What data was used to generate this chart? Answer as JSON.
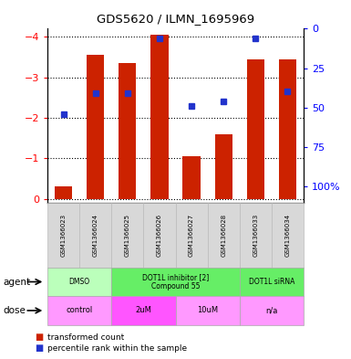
{
  "title": "GDS5620 / ILMN_1695969",
  "samples": [
    "GSM1366023",
    "GSM1366024",
    "GSM1366025",
    "GSM1366026",
    "GSM1366027",
    "GSM1366028",
    "GSM1366033",
    "GSM1366034"
  ],
  "red_values": [
    -0.3,
    -3.55,
    -3.35,
    -4.05,
    -1.05,
    -1.6,
    -3.45,
    -3.45
  ],
  "blue_values": [
    -2.1,
    -2.6,
    -2.6,
    -3.97,
    -2.3,
    -2.4,
    -3.97,
    -2.65
  ],
  "ylim_left": [
    -4.2,
    0.1
  ],
  "ylim_right": [
    0,
    110.25
  ],
  "yticks_left": [
    0,
    -1,
    -2,
    -3,
    -4
  ],
  "yticks_right": [
    0,
    25,
    50,
    75,
    100
  ],
  "ytick_labels_right": [
    "0",
    "25",
    "50",
    "75",
    "100%"
  ],
  "bar_color": "#cc2200",
  "dot_color": "#2233cc",
  "agent_groups": [
    {
      "label": "DMSO",
      "span": [
        0,
        2
      ],
      "color": "#bbffbb"
    },
    {
      "label": "DOT1L inhibitor [2]\nCompound 55",
      "span": [
        2,
        6
      ],
      "color": "#66ee66"
    },
    {
      "label": "DOT1L siRNA",
      "span": [
        6,
        8
      ],
      "color": "#66ee66"
    }
  ],
  "dose_groups": [
    {
      "label": "control",
      "span": [
        0,
        2
      ],
      "color": "#ff99ff"
    },
    {
      "label": "2uM",
      "span": [
        2,
        4
      ],
      "color": "#ff55ff"
    },
    {
      "label": "10uM",
      "span": [
        4,
        6
      ],
      "color": "#ff99ff"
    },
    {
      "label": "n/a",
      "span": [
        6,
        8
      ],
      "color": "#ff99ff"
    }
  ],
  "legend_red": "transformed count",
  "legend_blue": "percentile rank within the sample",
  "row_label_agent": "agent",
  "row_label_dose": "dose"
}
